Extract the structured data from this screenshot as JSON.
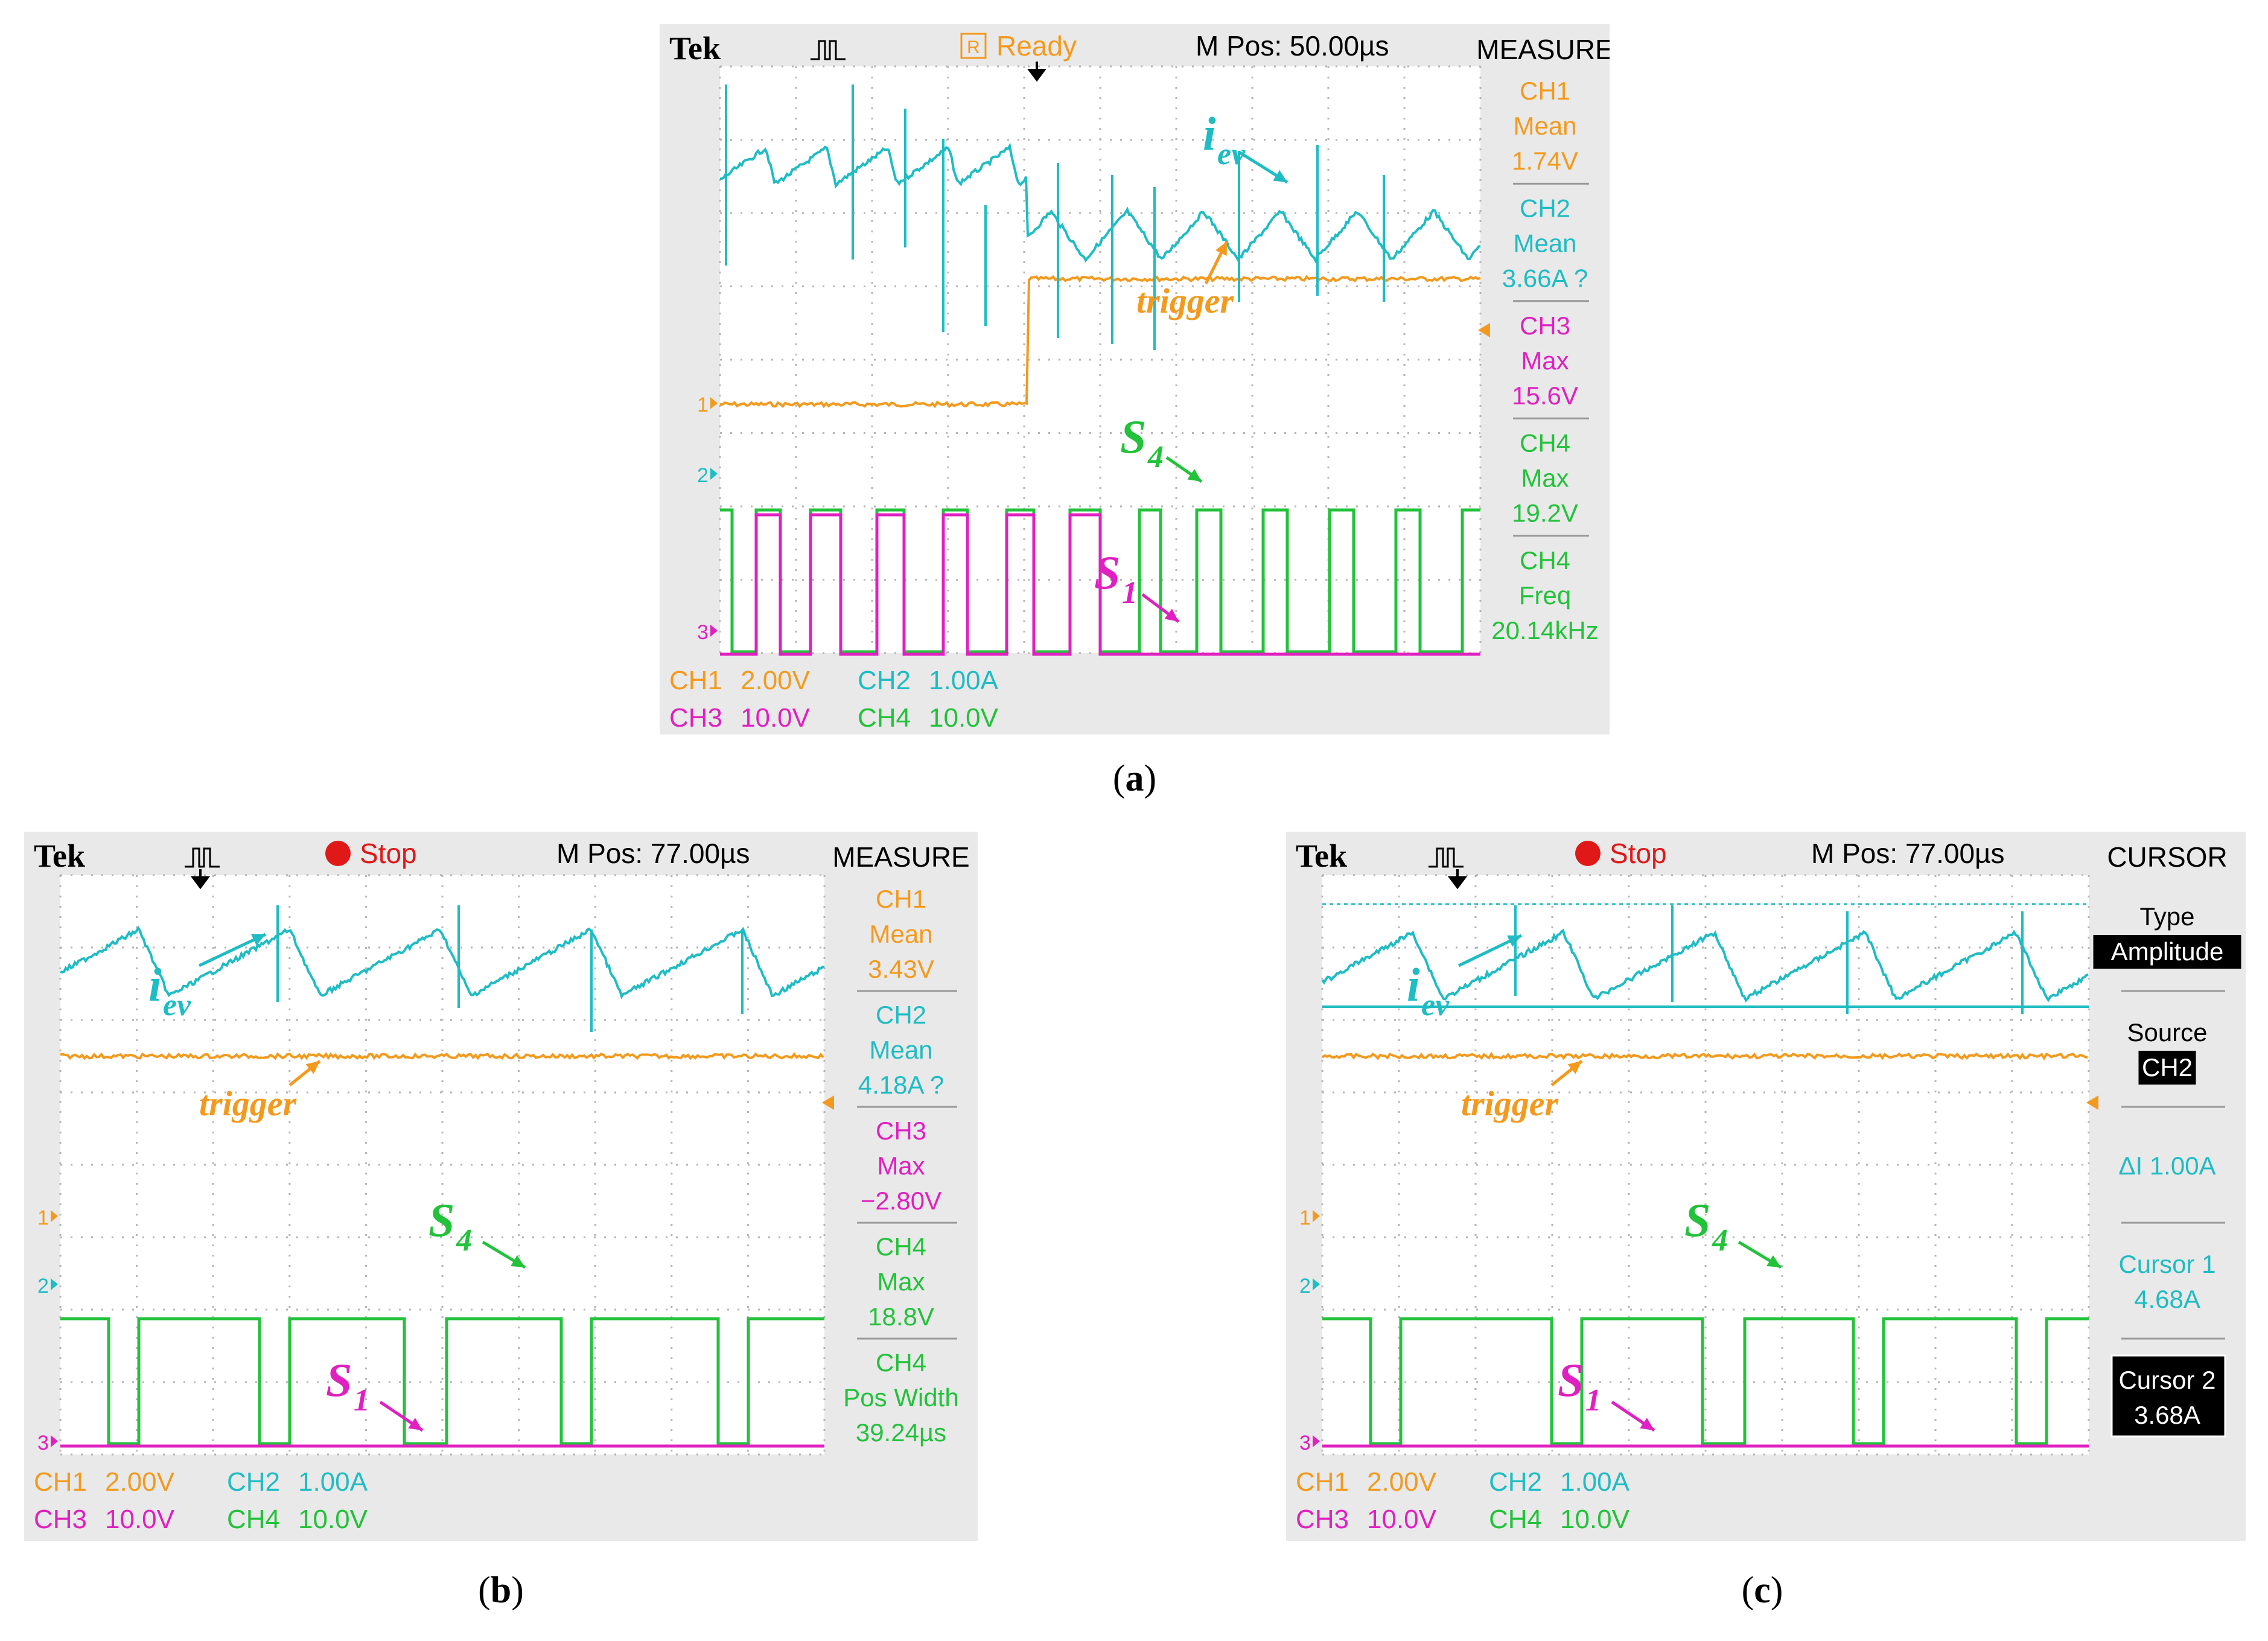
{
  "colors": {
    "ch1": "#f39a1e",
    "ch2": "#1fbcc4",
    "ch3": "#e020c0",
    "ch4": "#22c23a",
    "bezel": "#e9e9e9",
    "screen": "#ffffff",
    "grid": "#b5b5b5",
    "stop": "#e01818"
  },
  "panels": [
    {
      "id": "a",
      "brand": "Tek",
      "status": "Ready",
      "status_badge": "R",
      "mpos": "M Pos: 50.00µs",
      "menu_title": "MEASURE",
      "menu": [
        {
          "lines": [
            "CH1",
            "Mean",
            "1.74V"
          ],
          "color": "ch1"
        },
        {
          "lines": [
            "CH2",
            "Mean",
            "3.66A ?"
          ],
          "color": "ch2"
        },
        {
          "lines": [
            "CH3",
            "Max",
            "15.6V"
          ],
          "color": "ch3"
        },
        {
          "lines": [
            "CH4",
            "Max",
            "19.2V"
          ],
          "color": "ch4"
        },
        {
          "lines": [
            "CH4",
            "Freq",
            "20.14kHz"
          ],
          "color": "ch4"
        }
      ],
      "scales": [
        {
          "ch": "CH1",
          "val": "2.00V",
          "color": "ch1"
        },
        {
          "ch": "CH2",
          "val": "1.00A",
          "color": "ch2"
        },
        {
          "ch": "CH3",
          "val": "10.0V",
          "color": "ch3"
        },
        {
          "ch": "CH4",
          "val": "10.0V",
          "color": "ch4"
        }
      ],
      "labels": {
        "iev": "i",
        "iev_sub": "ev",
        "trigger": "trigger",
        "s4": "S",
        "s4_sub": "4",
        "s1": "S",
        "s1_sub": "1"
      },
      "caption": "a"
    },
    {
      "id": "b",
      "brand": "Tek",
      "status": "Stop",
      "mpos": "M Pos: 77.00µs",
      "menu_title": "MEASURE",
      "menu": [
        {
          "lines": [
            "CH1",
            "Mean",
            "3.43V"
          ],
          "color": "ch1"
        },
        {
          "lines": [
            "CH2",
            "Mean",
            "4.18A ?"
          ],
          "color": "ch2"
        },
        {
          "lines": [
            "CH3",
            "Max",
            "−2.80V"
          ],
          "color": "ch3"
        },
        {
          "lines": [
            "CH4",
            "Max",
            "18.8V"
          ],
          "color": "ch4"
        },
        {
          "lines": [
            "CH4",
            "Pos Width",
            "39.24µs"
          ],
          "color": "ch4"
        }
      ],
      "scales": [
        {
          "ch": "CH1",
          "val": "2.00V",
          "color": "ch1"
        },
        {
          "ch": "CH2",
          "val": "1.00A",
          "color": "ch2"
        },
        {
          "ch": "CH3",
          "val": "10.0V",
          "color": "ch3"
        },
        {
          "ch": "CH4",
          "val": "10.0V",
          "color": "ch4"
        }
      ],
      "labels": {
        "iev": "i",
        "iev_sub": "ev",
        "trigger": "trigger",
        "s4": "S",
        "s4_sub": "4",
        "s1": "S",
        "s1_sub": "1"
      },
      "caption": "b"
    },
    {
      "id": "c",
      "brand": "Tek",
      "status": "Stop",
      "mpos": "M Pos: 77.00µs",
      "menu_title": "CURSOR",
      "menu": [
        {
          "lines": [
            "Type",
            "Amplitude"
          ],
          "color": "black",
          "inv_last": true
        },
        {
          "lines": [
            "Source",
            "CH2"
          ],
          "color": "black",
          "inv_last": true
        },
        {
          "lines": [
            "ΔI 1.00A"
          ],
          "color": "ch2"
        },
        {
          "lines": [
            "Cursor 1",
            "4.68A"
          ],
          "color": "ch2"
        },
        {
          "lines": [
            "Cursor 2",
            "3.68A"
          ],
          "color": "white",
          "inv_box": true
        }
      ],
      "scales": [
        {
          "ch": "CH1",
          "val": "2.00V",
          "color": "ch1"
        },
        {
          "ch": "CH2",
          "val": "1.00A",
          "color": "ch2"
        },
        {
          "ch": "CH3",
          "val": "10.0V",
          "color": "ch3"
        },
        {
          "ch": "CH4",
          "val": "10.0V",
          "color": "ch4"
        }
      ],
      "labels": {
        "iev": "i",
        "iev_sub": "ev",
        "trigger": "trigger",
        "s4": "S",
        "s4_sub": "4",
        "s1": "S",
        "s1_sub": "1"
      },
      "caption": "c"
    }
  ],
  "chart_data": [
    {
      "type": "line",
      "panel": "a",
      "title": "",
      "grid": true,
      "divisions": {
        "x": 10,
        "y": 8
      },
      "series": [
        {
          "name": "i_ev",
          "channel": "CH2",
          "mean": "3.66A"
        },
        {
          "name": "trigger",
          "channel": "CH1",
          "mean": "1.74V"
        },
        {
          "name": "S4",
          "channel": "CH4",
          "max": "19.2V",
          "freq": "20.14kHz"
        },
        {
          "name": "S1",
          "channel": "CH3",
          "max": "15.6V"
        }
      ]
    },
    {
      "type": "line",
      "panel": "b",
      "title": "",
      "grid": true,
      "divisions": {
        "x": 10,
        "y": 8
      },
      "series": [
        {
          "name": "i_ev",
          "channel": "CH2",
          "mean": "4.18A"
        },
        {
          "name": "trigger",
          "channel": "CH1",
          "mean": "3.43V"
        },
        {
          "name": "S4",
          "channel": "CH4",
          "max": "18.8V",
          "pos_width": "39.24µs"
        },
        {
          "name": "S1",
          "channel": "CH3",
          "max": "-2.80V"
        }
      ]
    },
    {
      "type": "line",
      "panel": "c",
      "title": "",
      "grid": true,
      "divisions": {
        "x": 10,
        "y": 8
      },
      "series": [
        {
          "name": "i_ev",
          "channel": "CH2"
        },
        {
          "name": "trigger",
          "channel": "CH1"
        },
        {
          "name": "S4",
          "channel": "CH4"
        },
        {
          "name": "S1",
          "channel": "CH3"
        }
      ],
      "cursors": {
        "type": "Amplitude",
        "source": "CH2",
        "delta": "1.00A",
        "cursor1": "4.68A",
        "cursor2": "3.68A"
      }
    }
  ]
}
